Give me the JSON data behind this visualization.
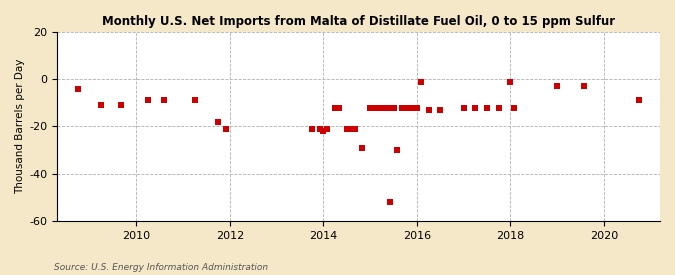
{
  "title": "Monthly U.S. Net Imports from Malta of Distillate Fuel Oil, 0 to 15 ppm Sulfur",
  "ylabel": "Thousand Barrels per Day",
  "source": "Source: U.S. Energy Information Administration",
  "background_color": "#f5e8c8",
  "plot_background_color": "#ffffff",
  "marker_color": "#cc0000",
  "marker_size": 18,
  "ylim": [
    -60,
    20
  ],
  "yticks": [
    -60,
    -40,
    -20,
    0,
    20
  ],
  "xlim_start": 2008.3,
  "xlim_end": 2021.2,
  "xticks": [
    2010,
    2012,
    2014,
    2016,
    2018,
    2020
  ],
  "data_points": [
    [
      2008.75,
      -4
    ],
    [
      2009.25,
      -11
    ],
    [
      2009.67,
      -11
    ],
    [
      2010.25,
      -9
    ],
    [
      2010.58,
      -9
    ],
    [
      2011.25,
      -9
    ],
    [
      2011.75,
      -18
    ],
    [
      2011.92,
      -21
    ],
    [
      2013.75,
      -21
    ],
    [
      2013.92,
      -21
    ],
    [
      2014.0,
      -22
    ],
    [
      2014.08,
      -21
    ],
    [
      2014.25,
      -12
    ],
    [
      2014.33,
      -12
    ],
    [
      2014.5,
      -21
    ],
    [
      2014.58,
      -21
    ],
    [
      2014.67,
      -21
    ],
    [
      2014.83,
      -29
    ],
    [
      2015.0,
      -12
    ],
    [
      2015.08,
      -12
    ],
    [
      2015.17,
      -12
    ],
    [
      2015.25,
      -12
    ],
    [
      2015.33,
      -12
    ],
    [
      2015.42,
      -12
    ],
    [
      2015.5,
      -12
    ],
    [
      2015.58,
      -30
    ],
    [
      2015.67,
      -12
    ],
    [
      2015.75,
      -12
    ],
    [
      2015.83,
      -12
    ],
    [
      2015.92,
      -12
    ],
    [
      2016.0,
      -12
    ],
    [
      2016.08,
      -1
    ],
    [
      2016.25,
      -13
    ],
    [
      2016.5,
      -13
    ],
    [
      2017.0,
      -12
    ],
    [
      2017.25,
      -12
    ],
    [
      2017.5,
      -12
    ],
    [
      2017.75,
      -12
    ],
    [
      2018.0,
      -1
    ],
    [
      2018.08,
      -12
    ],
    [
      2019.0,
      -3
    ],
    [
      2019.58,
      -3
    ],
    [
      2020.75,
      -9
    ]
  ],
  "deep_point": [
    2015.42,
    -52
  ]
}
